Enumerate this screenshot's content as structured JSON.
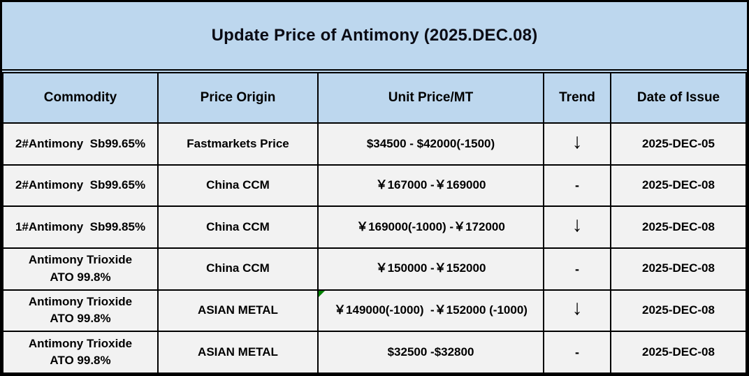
{
  "title": "Update Price of Antimony (2025.DEC.08)",
  "colors": {
    "band_blue": "#bdd7ee",
    "row_gray": "#f2f2f2",
    "grid_black": "#000000",
    "comment_marker_green": "#008000"
  },
  "table": {
    "columns": [
      "Commodity",
      "Price Origin",
      "Unit Price/MT",
      "Trend",
      "Date of Issue"
    ],
    "rows": [
      {
        "commodity": "2#Antimony  Sb99.65%",
        "origin": "Fastmarkets Price",
        "price": "$34500 - $42000(-1500)",
        "trend": "↓",
        "date": "2025-DEC-05",
        "has_marker": false
      },
      {
        "commodity": "2#Antimony  Sb99.65%",
        "origin": "China CCM",
        "price": "￥167000 -￥169000",
        "trend": "-",
        "date": "2025-DEC-08",
        "has_marker": false
      },
      {
        "commodity": "1#Antimony  Sb99.85%",
        "origin": "China CCM",
        "price": "￥169000(-1000) -￥172000",
        "trend": "↓",
        "date": "2025-DEC-08",
        "has_marker": false
      },
      {
        "commodity": "Antimony Trioxide\nATO 99.8%",
        "origin": "China CCM",
        "price": "￥150000 -￥152000",
        "trend": "-",
        "date": "2025-DEC-08",
        "has_marker": false
      },
      {
        "commodity": "Antimony Trioxide\nATO 99.8%",
        "origin": "ASIAN METAL",
        "price": "￥149000(-1000)  -￥152000 (-1000)",
        "trend": "↓",
        "date": "2025-DEC-08",
        "has_marker": true
      },
      {
        "commodity": "Antimony Trioxide\nATO 99.8%",
        "origin": "ASIAN METAL",
        "price": "$32500 -$32800",
        "trend": "-",
        "date": "2025-DEC-08",
        "has_marker": false
      }
    ]
  }
}
